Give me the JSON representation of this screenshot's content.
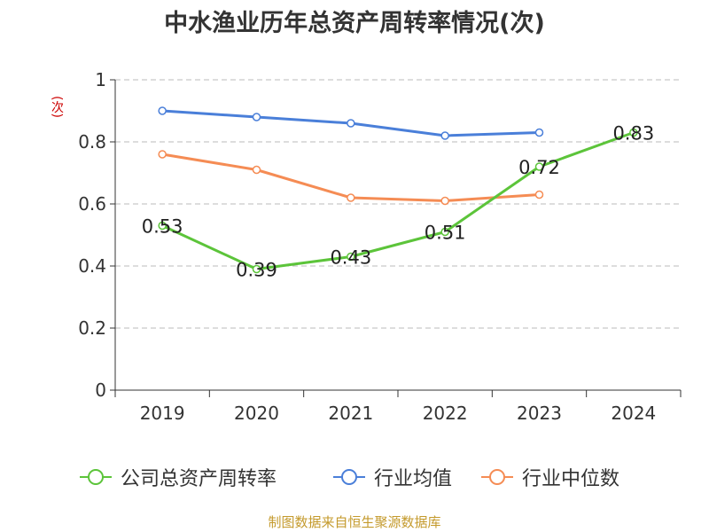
{
  "chart_data": {
    "type": "line",
    "title": "中水渔业历年总资产周转率情况(次)",
    "ylabel": "(次)",
    "categories": [
      "2019",
      "2020",
      "2021",
      "2022",
      "2023",
      "2024"
    ],
    "ylim": [
      0,
      1
    ],
    "yticks": [
      "0",
      "0.2",
      "0.4",
      "0.6",
      "0.8",
      "1"
    ],
    "ytick_values": [
      0,
      0.2,
      0.4,
      0.6,
      0.8,
      1
    ],
    "grid": true,
    "legend_position": "bottom",
    "series": [
      {
        "name": "公司总资产周转率",
        "color": "#5cc43a",
        "values": [
          0.53,
          0.39,
          0.43,
          0.51,
          0.72,
          0.83
        ],
        "data_labels": [
          "0.53",
          "0.39",
          "0.43",
          "0.51",
          "0.72",
          "0.83"
        ]
      },
      {
        "name": "行业均值",
        "color": "#4a7fd9",
        "values": [
          0.9,
          0.88,
          0.86,
          0.82,
          0.83,
          null
        ]
      },
      {
        "name": "行业中位数",
        "color": "#f58c54",
        "values": [
          0.76,
          0.71,
          0.62,
          0.61,
          0.63,
          null
        ]
      }
    ]
  },
  "footer": "制图数据来自恒生聚源数据库"
}
